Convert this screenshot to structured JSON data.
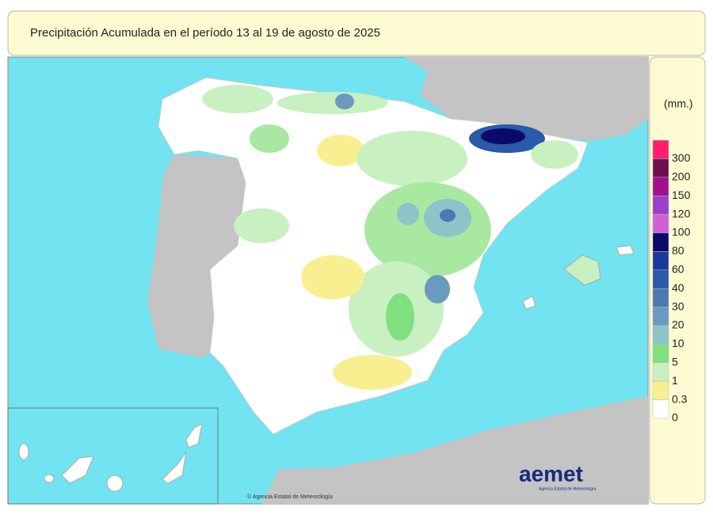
{
  "header": {
    "title": "Precipitación Acumulada en el período 13 al 19 de agosto de 2025"
  },
  "legend": {
    "unit": "(mm.)",
    "items": [
      {
        "label": "300",
        "color": "#ff1f6b"
      },
      {
        "label": "200",
        "color": "#6b0f4f"
      },
      {
        "label": "150",
        "color": "#a0108f"
      },
      {
        "label": "120",
        "color": "#9a40c8"
      },
      {
        "label": "100",
        "color": "#d060d8"
      },
      {
        "label": "80",
        "color": "#0a0a6a"
      },
      {
        "label": "60",
        "color": "#1a3a9a"
      },
      {
        "label": "40",
        "color": "#2a5aa8"
      },
      {
        "label": "30",
        "color": "#4a7ab0"
      },
      {
        "label": "20",
        "color": "#6a9ac0"
      },
      {
        "label": "10",
        "color": "#8cc4c8"
      },
      {
        "label": "5",
        "color": "#80e080"
      },
      {
        "label": "1",
        "color": "#c8f0c0"
      },
      {
        "label": "0.3",
        "color": "#f8f090"
      },
      {
        "label": "0",
        "color": "#ffffff"
      }
    ]
  },
  "logo": {
    "name": "aemet",
    "subtitle": "Agencia Estatal de Meteorología"
  },
  "credit": "© Agencia Estatal de Meteorología"
}
